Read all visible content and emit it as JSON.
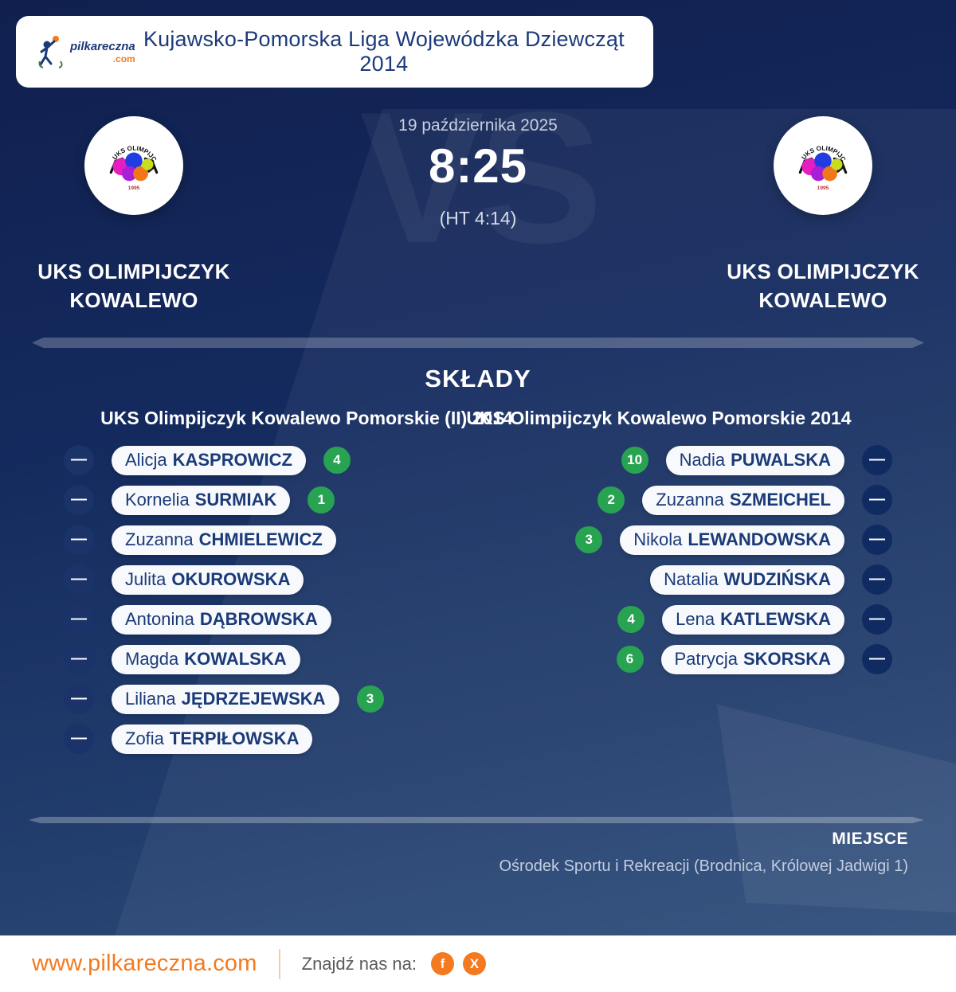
{
  "colors": {
    "accent_orange": "#f4791f",
    "goal_green": "#27a351",
    "navy_text": "#1a3a78"
  },
  "header": {
    "brand": "pilkareczna",
    "brand_tld": ".com",
    "title": "Kujawsko-Pomorska Liga Wojewódzka Dziewcząt 2014"
  },
  "match": {
    "date": "19 października 2025",
    "score": "8:25",
    "halftime": "(HT 4:14)",
    "vs_watermark": "VS",
    "crest_text": "UKS OLIMPIJCZYK",
    "crest_year": "1995",
    "home_team": {
      "name_line1": "UKS OLIMPIJCZYK",
      "name_line2": "KOWALEWO"
    },
    "away_team": {
      "name_line1": "UKS OLIMPIJCZYK",
      "name_line2": "KOWALEWO"
    }
  },
  "lineups": {
    "section_title": "SKŁADY",
    "home_team_title": "UKS Olimpijczyk Kowalewo Pomorskie (II) 2014",
    "away_team_title": "UKS Olimpijczyk Kowalewo Pomorskie 2014",
    "dash": "—",
    "home_players": [
      {
        "first": "Alicja",
        "last": "KASPROWICZ",
        "goals": "4"
      },
      {
        "first": "Kornelia",
        "last": "SURMIAK",
        "goals": "1"
      },
      {
        "first": "Zuzanna",
        "last": "CHMIELEWICZ"
      },
      {
        "first": "Julita",
        "last": "OKUROWSKA"
      },
      {
        "first": "Antonina",
        "last": "DĄBROWSKA"
      },
      {
        "first": "Magda",
        "last": "KOWALSKA"
      },
      {
        "first": "Liliana",
        "last": "JĘDRZEJEWSKA",
        "goals": "3"
      },
      {
        "first": "Zofia",
        "last": "TERPIŁOWSKA"
      }
    ],
    "away_players": [
      {
        "first": "Nadia",
        "last": "PUWALSKA",
        "goals": "10"
      },
      {
        "first": "Zuzanna",
        "last": "SZMEICHEL",
        "goals": "2"
      },
      {
        "first": "Nikola",
        "last": "LEWANDOWSKA",
        "goals": "3"
      },
      {
        "first": "Natalia",
        "last": "WUDZIŃSKA"
      },
      {
        "first": "Lena",
        "last": "KATLEWSKA",
        "goals": "4"
      },
      {
        "first": "Patrycja",
        "last": "SKORSKA",
        "goals": "6"
      }
    ]
  },
  "venue": {
    "label": "MIEJSCE",
    "value": "Ośrodek Sportu i Rekreacji (Brodnica, Królowej Jadwigi 1)"
  },
  "footer": {
    "website": "www.pilkareczna.com",
    "find_us": "Znajdź nas na:",
    "social": [
      {
        "icon": "facebook-icon",
        "glyph": "f"
      },
      {
        "icon": "x-icon",
        "glyph": "X"
      }
    ]
  }
}
